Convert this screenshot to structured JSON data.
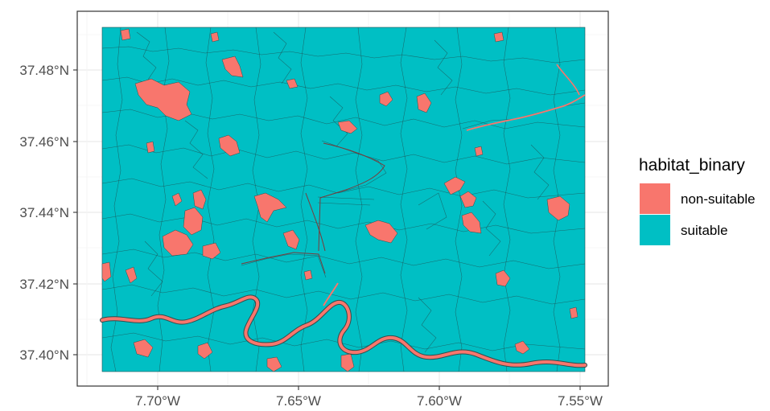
{
  "map": {
    "x_ticks": [
      "7.70°W",
      "7.65°W",
      "7.60°W",
      "7.55°W"
    ],
    "y_ticks": [
      "37.48°N",
      "37.46°N",
      "37.44°N",
      "37.42°N",
      "37.40°N"
    ],
    "x_range_deg_w": [
      7.72,
      7.549
    ],
    "y_range_deg_n": [
      37.395,
      37.491
    ]
  },
  "legend": {
    "title": "habitat_binary",
    "items": [
      {
        "label": "non-suitable",
        "color": "#F8766D"
      },
      {
        "label": "suitable",
        "color": "#00BFC4"
      }
    ]
  },
  "colors": {
    "non_suitable": "#F8766D",
    "suitable": "#00BFC4",
    "parcel_border": "#1f4f52",
    "grid": "#ebebeb",
    "panel_border": "#333333"
  }
}
